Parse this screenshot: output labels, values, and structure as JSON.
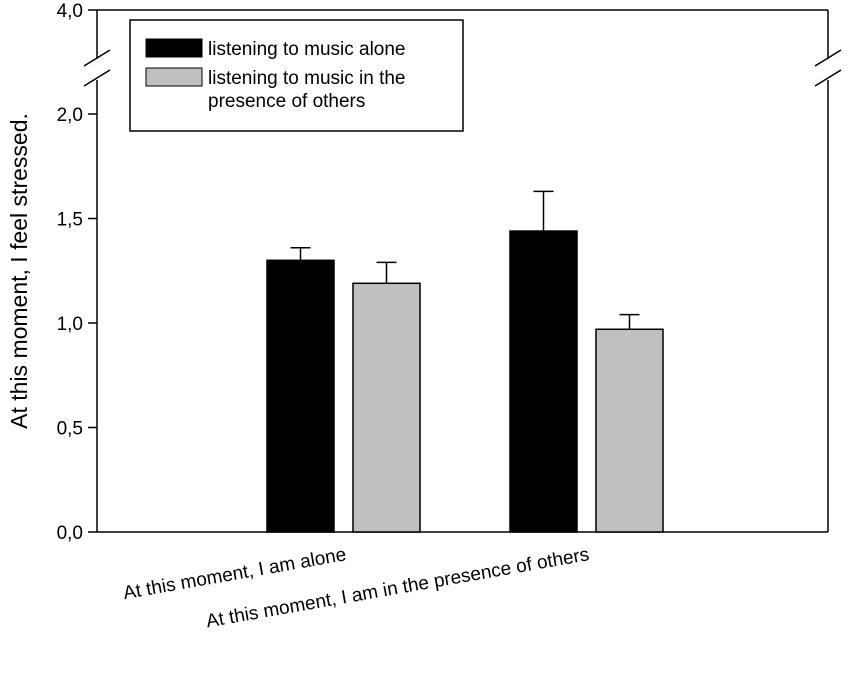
{
  "chart_data": {
    "type": "bar",
    "ylabel": "At this moment, I feel stressed.",
    "categories": [
      "At this moment, I am alone",
      "At this moment, I am in the presence of others"
    ],
    "series": [
      {
        "name": "listening to music alone",
        "color": "#000000",
        "values": [
          1.3,
          1.44
        ],
        "errors": [
          0.06,
          0.19
        ]
      },
      {
        "name": "listening to music in the presence of others",
        "name_lines": [
          "listening to music in the",
          "presence of others"
        ],
        "color": "#c0c0c0",
        "values": [
          1.19,
          0.97
        ],
        "errors": [
          0.1,
          0.07
        ]
      }
    ],
    "y_ticks": [
      "0,0",
      "0,5",
      "1,0",
      "1,5",
      "2,0",
      "4,0"
    ],
    "y_tick_values": [
      0,
      0.5,
      1.0,
      1.5,
      2.0,
      4.0
    ],
    "y_axis_break": true,
    "ylim": [
      0,
      4.0
    ],
    "grid": false,
    "legend_position": "top-left"
  }
}
